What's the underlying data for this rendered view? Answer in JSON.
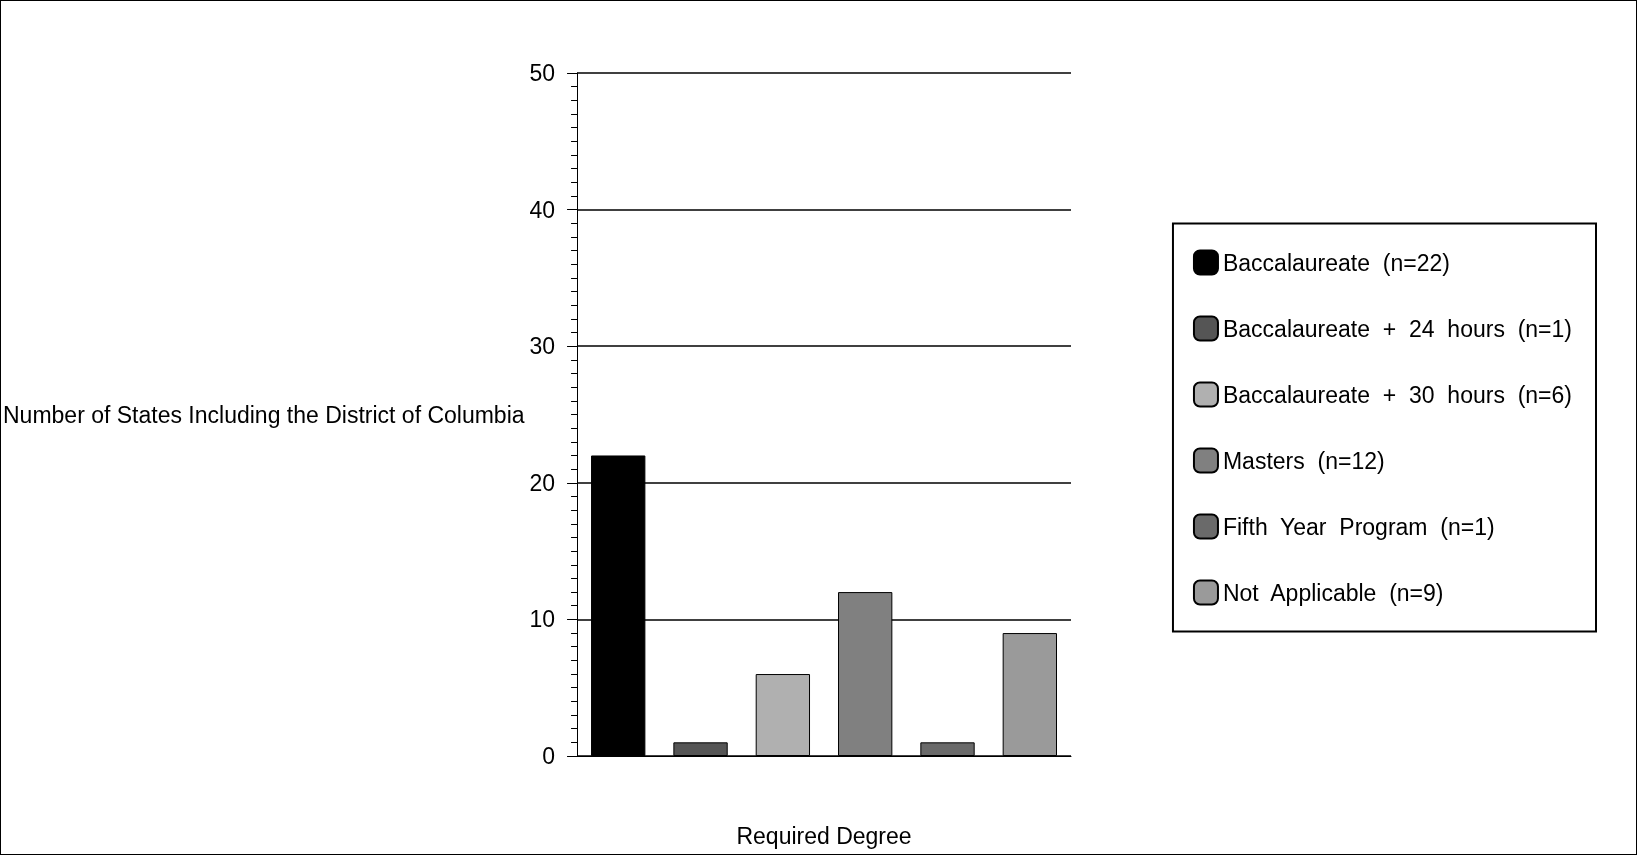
{
  "chart_data": {
    "type": "bar",
    "xlabel": "Required Degree",
    "ylabel": "Number of States Including the District of Columbia",
    "categories": [
      null,
      null,
      null,
      null,
      null,
      null
    ],
    "series": [
      {
        "name": "Baccalaureate  (n=22)",
        "color": "#000000",
        "values": [
          22,
          null,
          null,
          null,
          null,
          null
        ]
      },
      {
        "name": "Baccalaureate  +  24  hours  (n=1)",
        "color": "#555555",
        "values": [
          null,
          1,
          null,
          null,
          null,
          null
        ]
      },
      {
        "name": "Baccalaureate  +  30  hours  (n=6)",
        "color": "#b0b0b0",
        "values": [
          null,
          null,
          6,
          null,
          null,
          null
        ]
      },
      {
        "name": "Masters  (n=12)",
        "color": "#808080",
        "values": [
          null,
          null,
          null,
          12,
          null,
          null
        ]
      },
      {
        "name": "Fifth  Year  Program  (n=1)",
        "color": "#6a6a6a",
        "values": [
          null,
          null,
          null,
          null,
          1,
          null
        ]
      },
      {
        "name": "Not  Applicable  (n=9)",
        "color": "#9a9a9a",
        "values": [
          null,
          null,
          null,
          null,
          null,
          9
        ]
      }
    ],
    "ylim": [
      0,
      50
    ],
    "yticks": [
      0,
      10,
      20,
      30,
      40,
      50
    ],
    "grid": "y",
    "legend": "right"
  }
}
